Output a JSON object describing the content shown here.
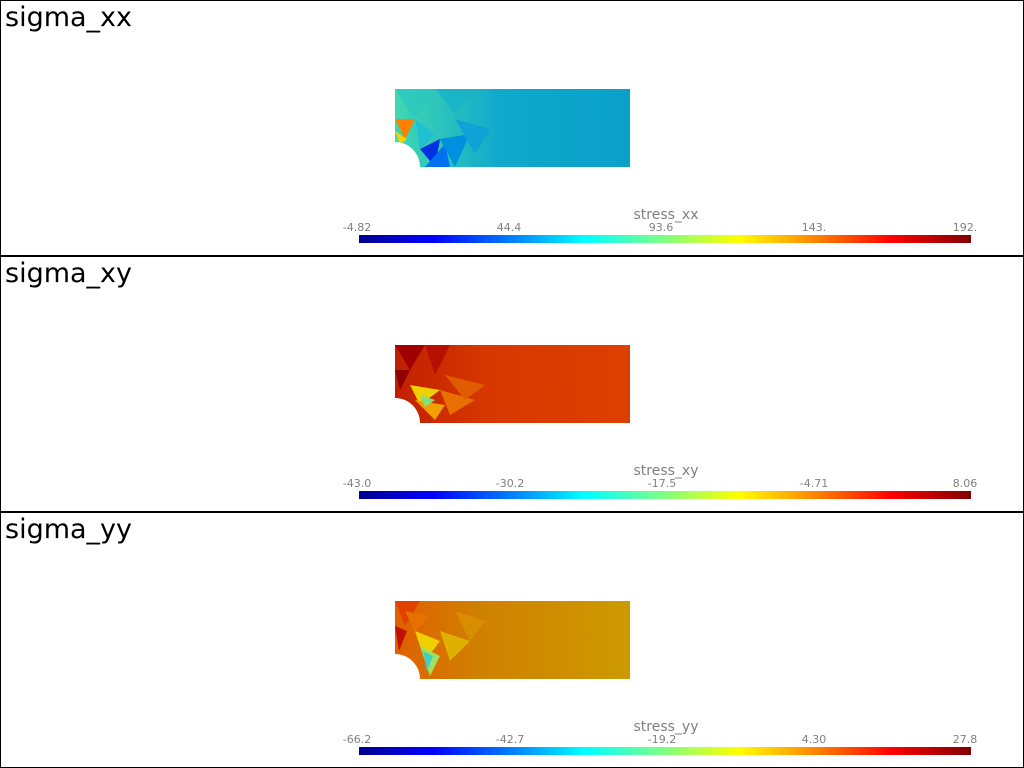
{
  "panels": [
    {
      "title": "sigma_xx",
      "colorbar_title": "stress_xx",
      "ticks": [
        "-4.82",
        "44.4",
        "93.6",
        "143.",
        "192."
      ],
      "base_color": "#0aa0c8",
      "hot_color": "#30d0c0",
      "hole_color": "#0010b0",
      "edge_color": "#e06000"
    },
    {
      "title": "sigma_xy",
      "colorbar_title": "stress_xy",
      "ticks": [
        "-43.0",
        "-30.2",
        "-17.5",
        "-4.71",
        "8.06"
      ],
      "base_color": "#d84000",
      "hot_color": "#b81000",
      "hole_color": "#60d0b0",
      "edge_color": "#e8a000"
    },
    {
      "title": "sigma_yy",
      "colorbar_title": "stress_yy",
      "ticks": [
        "-66.2",
        "-42.7",
        "-19.2",
        "4.30",
        "27.8"
      ],
      "base_color": "#cc9a00",
      "hot_color": "#e07000",
      "hole_color": "#40d0c0",
      "edge_color": "#d84000"
    }
  ]
}
